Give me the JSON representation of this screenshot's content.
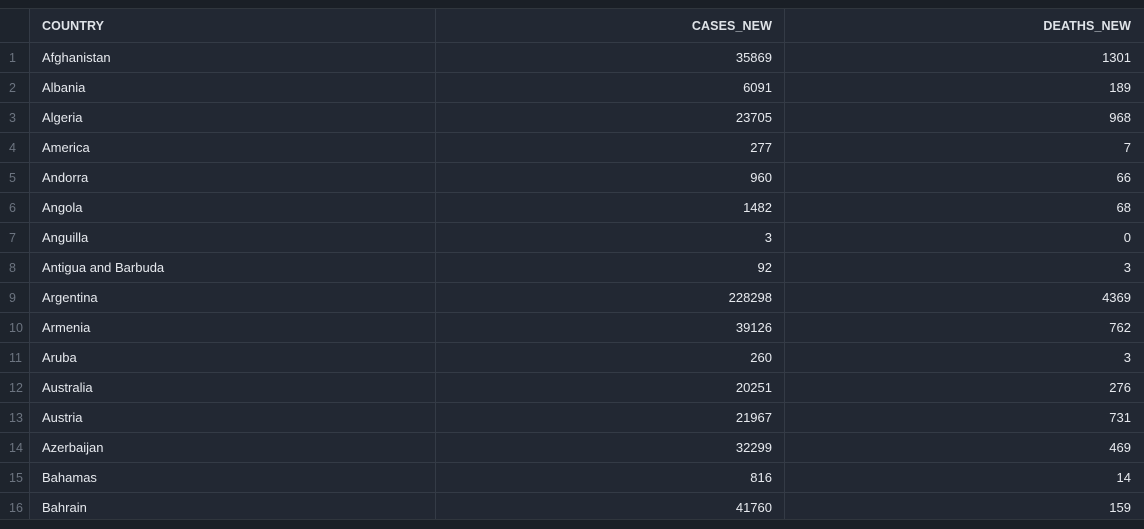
{
  "table": {
    "columns": [
      "COUNTRY",
      "CASES_NEW",
      "DEATHS_NEW"
    ],
    "rows": [
      {
        "idx": "1",
        "country": "Afghanistan",
        "cases_new": "35869",
        "deaths_new": "1301"
      },
      {
        "idx": "2",
        "country": "Albania",
        "cases_new": "6091",
        "deaths_new": "189"
      },
      {
        "idx": "3",
        "country": "Algeria",
        "cases_new": "23705",
        "deaths_new": "968"
      },
      {
        "idx": "4",
        "country": "America",
        "cases_new": "277",
        "deaths_new": "7"
      },
      {
        "idx": "5",
        "country": "Andorra",
        "cases_new": "960",
        "deaths_new": "66"
      },
      {
        "idx": "6",
        "country": "Angola",
        "cases_new": "1482",
        "deaths_new": "68"
      },
      {
        "idx": "7",
        "country": "Anguilla",
        "cases_new": "3",
        "deaths_new": "0"
      },
      {
        "idx": "8",
        "country": "Antigua and Barbuda",
        "cases_new": "92",
        "deaths_new": "3"
      },
      {
        "idx": "9",
        "country": "Argentina",
        "cases_new": "228298",
        "deaths_new": "4369"
      },
      {
        "idx": "10",
        "country": "Armenia",
        "cases_new": "39126",
        "deaths_new": "762"
      },
      {
        "idx": "11",
        "country": "Aruba",
        "cases_new": "260",
        "deaths_new": "3"
      },
      {
        "idx": "12",
        "country": "Australia",
        "cases_new": "20251",
        "deaths_new": "276"
      },
      {
        "idx": "13",
        "country": "Austria",
        "cases_new": "21967",
        "deaths_new": "731"
      },
      {
        "idx": "14",
        "country": "Azerbaijan",
        "cases_new": "32299",
        "deaths_new": "469"
      },
      {
        "idx": "15",
        "country": "Bahamas",
        "cases_new": "816",
        "deaths_new": "14"
      },
      {
        "idx": "16",
        "country": "Bahrain",
        "cases_new": "41760",
        "deaths_new": "159"
      }
    ]
  }
}
